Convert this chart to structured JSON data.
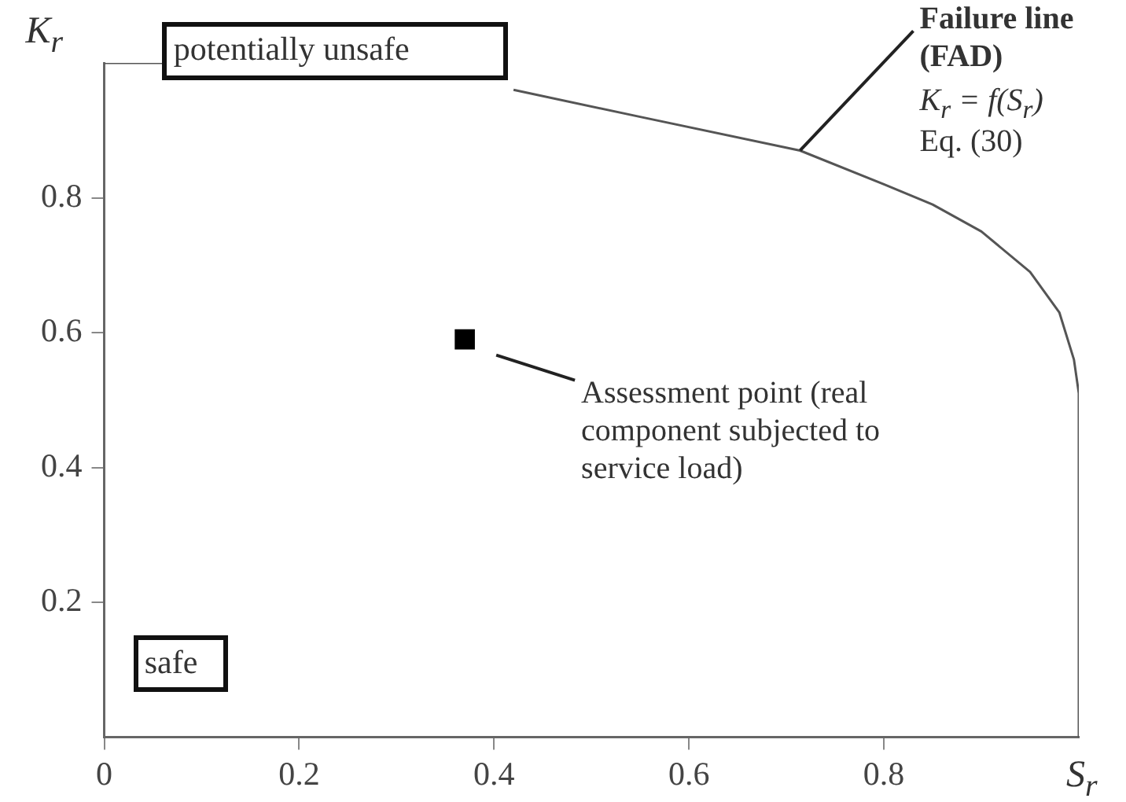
{
  "chart_data": {
    "type": "line",
    "xlabel": "S$_{r}$",
    "ylabel": "K$_{r}$",
    "xlim": [
      0,
      1
    ],
    "ylim": [
      0,
      1
    ],
    "xticks": [
      0,
      0.2,
      0.4,
      0.6,
      0.8
    ],
    "yticks": [
      0.2,
      0.4,
      0.6,
      0.8
    ],
    "legend": false,
    "series": [
      {
        "type": "line",
        "color": "#555555",
        "marker": "none",
        "x": [
          0,
          0.06,
          0.2,
          0.42,
          0.55,
          0.714,
          0.8,
          0.85,
          0.9,
          0.95,
          0.98,
          0.995,
          1,
          1
        ],
        "values": [
          1,
          1,
          null,
          0.96,
          0.92,
          0.87,
          0.82,
          0.79,
          0.75,
          0.69,
          0.63,
          0.56,
          0.51,
          0
        ]
      },
      {
        "type": "scatter",
        "color": "#000000",
        "marker": "square",
        "x": [
          0.37
        ],
        "values": [
          0.59
        ]
      }
    ],
    "annotations": [
      "potentially unsafe",
      "safe",
      "Assessment point (real component subjected to service load)",
      {
        "text": "Failure line (FAD)",
        "x": 0.714,
        "y": 0.87
      },
      "K$_{r}$ = f(S$_{r}$)",
      "Eq. (30)"
    ]
  }
}
